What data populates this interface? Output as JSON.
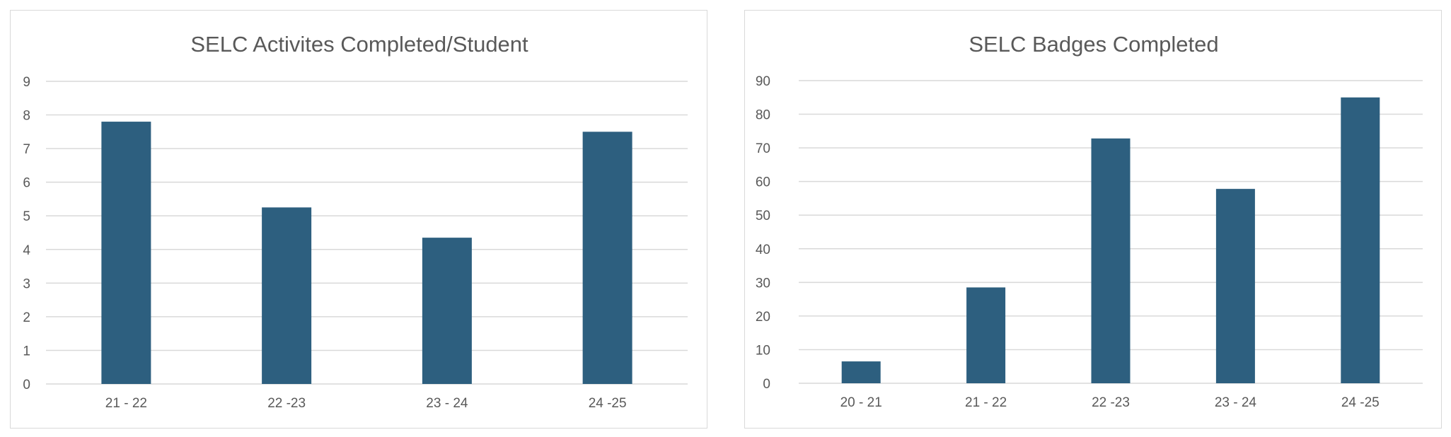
{
  "chart_data": [
    {
      "type": "bar",
      "title": "SELC Activites Completed/Student",
      "categories": [
        "21 - 22",
        "22 -23",
        "23 - 24",
        "24 -25"
      ],
      "values": [
        7.8,
        5.25,
        4.35,
        7.5
      ],
      "ylim": [
        0,
        9
      ],
      "yticks": [
        "0",
        "1",
        "2",
        "3",
        "4",
        "5",
        "6",
        "7",
        "8",
        "9"
      ],
      "xlabel": "",
      "ylabel": "",
      "grid": true,
      "legend": "none",
      "color": "#2d5f7f"
    },
    {
      "type": "bar",
      "title": "SELC Badges Completed",
      "categories": [
        "20 - 21",
        "21 - 22",
        "22 -23",
        "23 - 24",
        "24 -25"
      ],
      "values": [
        6.5,
        28.5,
        72.8,
        57.8,
        85
      ],
      "ylim": [
        0,
        90
      ],
      "yticks": [
        "0",
        "10",
        "20",
        "30",
        "40",
        "50",
        "60",
        "70",
        "80",
        "90"
      ],
      "xlabel": "",
      "ylabel": "",
      "grid": true,
      "legend": "none",
      "color": "#2d5f7f"
    }
  ]
}
